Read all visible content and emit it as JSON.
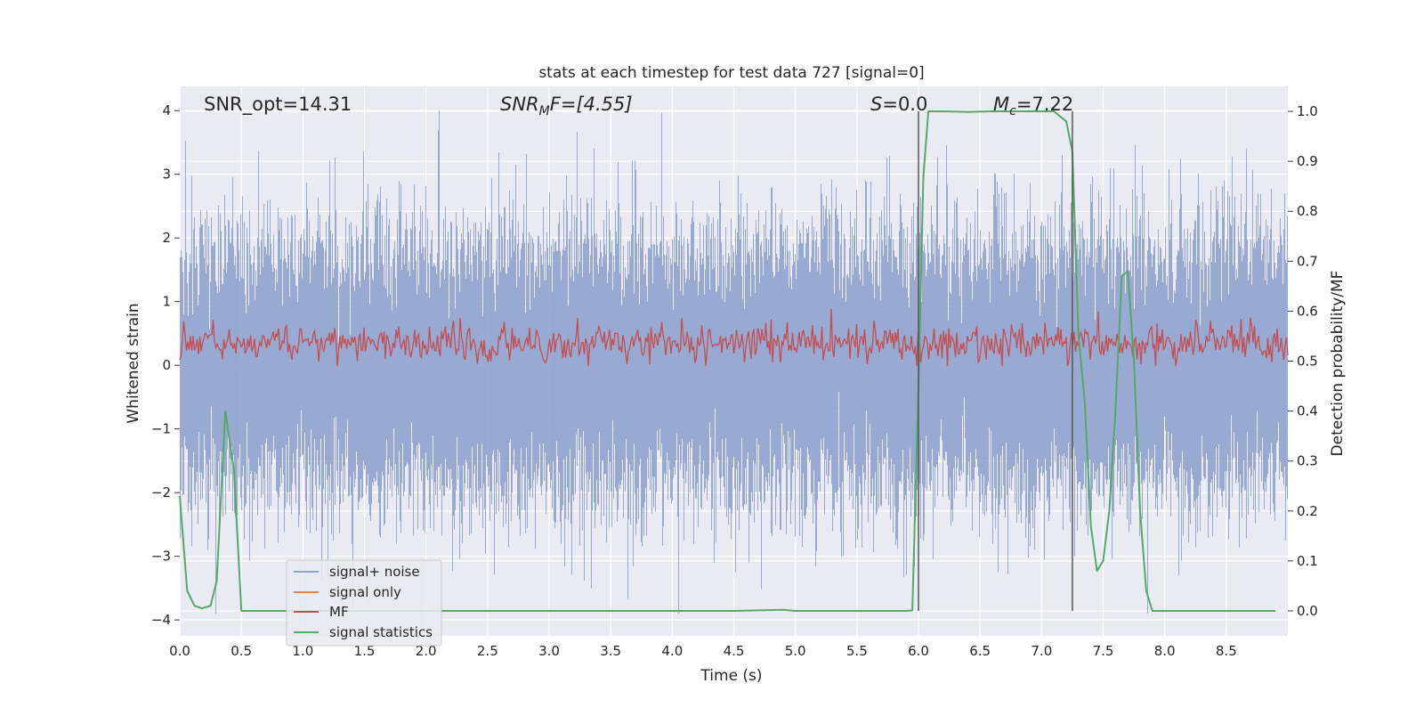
{
  "chart_data": {
    "type": "line",
    "title": "stats at each timestep for test data 727 [signal=0]",
    "xlabel": "Time (s)",
    "ylabel": "Whitened strain",
    "y2label": "Detection probability/MF",
    "xlim": [
      0.0,
      9.0
    ],
    "ylim": [
      -4.25,
      4.38
    ],
    "y2lim": [
      -0.05,
      1.05
    ],
    "grid": true,
    "legend_position": "bottom-left",
    "x_ticks": [
      "0.0",
      "0.5",
      "1.0",
      "1.5",
      "2.0",
      "2.5",
      "3.0",
      "3.5",
      "4.0",
      "4.5",
      "5.0",
      "5.5",
      "6.0",
      "6.5",
      "7.0",
      "7.5",
      "8.0",
      "8.5"
    ],
    "y_ticks": [
      "4",
      "3",
      "2",
      "1",
      "0",
      "−1",
      "−2",
      "−3",
      "−4"
    ],
    "y2_ticks": [
      "1.0",
      "0.9",
      "0.8",
      "0.7",
      "0.6",
      "0.5",
      "0.4",
      "0.3",
      "0.2",
      "0.1",
      "0.0"
    ],
    "annotations": {
      "snr_opt": "SNR_opt=14.31",
      "snr_mf_main": "SNR",
      "snr_mf_sub": "M",
      "snr_mf_rest": "F=[4.55]",
      "s_main": "S",
      "s_rest": "=0.0",
      "mc_main": "M",
      "mc_sub": "c",
      "mc_rest": "=7.22"
    },
    "vlines": [
      6.0,
      7.25
    ],
    "colors": {
      "background": "#eaeaf2",
      "grid": "#ffffff",
      "noise": "#8fa3cd",
      "signal_only": "#dd8452",
      "mf": "#c44e52",
      "stats": "#55a868",
      "vline": "#555555"
    },
    "series": [
      {
        "name": "signal+ noise",
        "kind": "noise",
        "sample_rate_hz": 2048,
        "amplitude_sigma": 1.0,
        "approx_envelope": [
          -3.9,
          4.0
        ]
      },
      {
        "name": "signal only",
        "kind": "flat",
        "value": 0.0
      },
      {
        "name": "MF",
        "kind": "noise",
        "axis": "y2",
        "mean": 0.535,
        "range": [
          0.49,
          0.61
        ]
      },
      {
        "name": "signal statistics",
        "axis": "y2",
        "x": [
          0.0,
          0.06,
          0.12,
          0.18,
          0.25,
          0.3,
          0.37,
          0.44,
          0.5,
          0.56,
          0.7,
          1.0,
          2.0,
          3.0,
          4.0,
          4.5,
          4.9,
          5.0,
          5.5,
          5.9,
          5.95,
          6.0,
          6.04,
          6.08,
          6.2,
          6.4,
          6.6,
          6.8,
          7.0,
          7.1,
          7.15,
          7.2,
          7.25,
          7.3,
          7.35,
          7.4,
          7.45,
          7.5,
          7.55,
          7.6,
          7.65,
          7.7,
          7.75,
          7.8,
          7.85,
          7.9,
          8.0,
          8.5,
          8.9
        ],
        "y": [
          0.23,
          0.04,
          0.01,
          0.005,
          0.01,
          0.06,
          0.4,
          0.28,
          0.0,
          0.0,
          0.0,
          0.0,
          0.0,
          0.0,
          0.0,
          0.0,
          0.002,
          0.0,
          0.0,
          0.0,
          0.001,
          0.45,
          0.87,
          1.0,
          1.0,
          0.999,
          1.0,
          1.0,
          1.0,
          1.0,
          0.99,
          0.98,
          0.92,
          0.55,
          0.42,
          0.17,
          0.08,
          0.1,
          0.2,
          0.4,
          0.67,
          0.68,
          0.5,
          0.2,
          0.04,
          0.0,
          0.0,
          0.0,
          0.0
        ]
      }
    ]
  }
}
